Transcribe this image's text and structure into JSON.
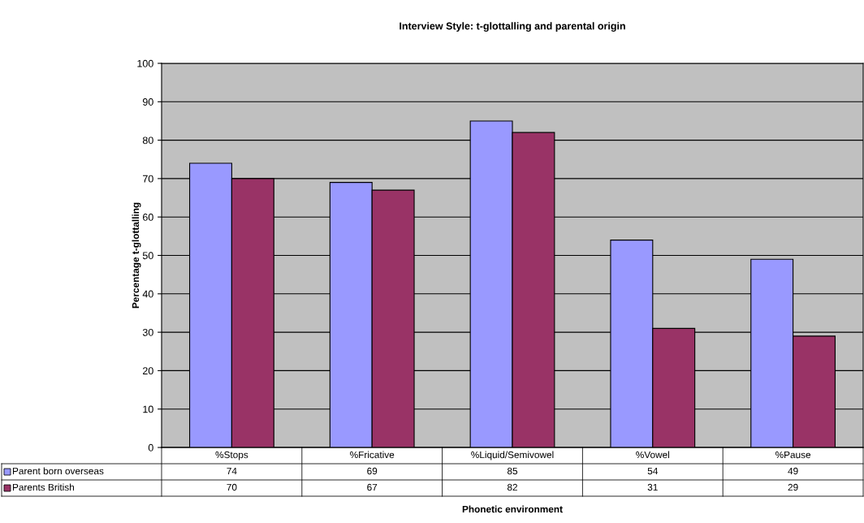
{
  "chart_data": {
    "type": "bar",
    "title": "Interview Style: t-glottalling and parental origin",
    "xlabel": "Phonetic environment",
    "ylabel": "Percentage t-glottalling",
    "categories": [
      "%Stops",
      "%Fricative",
      "%Liquid/Semivowel",
      "%Vowel",
      "%Pause"
    ],
    "series": [
      {
        "name": "Parent born overseas",
        "color": "#9999ff",
        "values": [
          74,
          69,
          85,
          54,
          49
        ]
      },
      {
        "name": "Parents British",
        "color": "#993366",
        "values": [
          70,
          67,
          82,
          31,
          29
        ]
      }
    ],
    "ylim": [
      0,
      100
    ],
    "yticks": [
      0,
      10,
      20,
      30,
      40,
      50,
      60,
      70,
      80,
      90,
      100
    ],
    "grid": "y",
    "data_labels": true,
    "legend": "bottom"
  }
}
